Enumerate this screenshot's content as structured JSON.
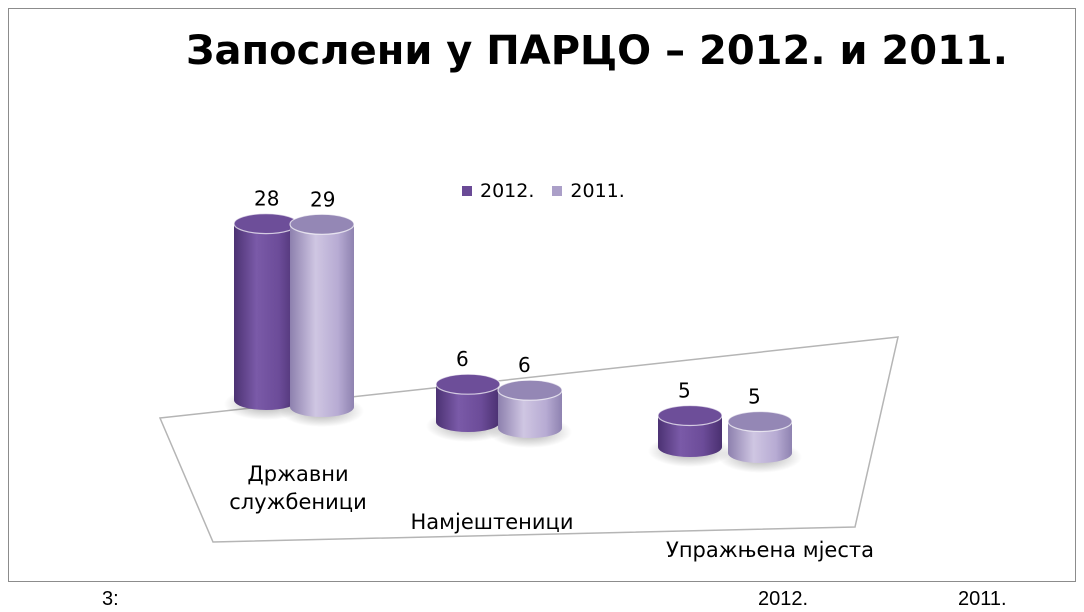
{
  "chart_data": {
    "type": "bar",
    "title": "Запослени у ПАРЦО – 2012. и 2011.",
    "categories": [
      "Државни службеници",
      "Намјештеници",
      "Упражњена мјеста"
    ],
    "category_lines": [
      [
        "Државни",
        "службеници"
      ],
      [
        "Намјештеници"
      ],
      [
        "Упражњена мјеста"
      ]
    ],
    "series": [
      {
        "name": "2012.",
        "values": [
          28,
          6,
          5
        ],
        "color": "#6a4a96"
      },
      {
        "name": "2011.",
        "values": [
          29,
          6,
          5
        ],
        "color": "#ab9fc8"
      }
    ],
    "legend_position": "top-center",
    "style": "3d-cylinder"
  },
  "footer": {
    "left": "3:",
    "year_a": "2012.",
    "year_b": "2011."
  }
}
